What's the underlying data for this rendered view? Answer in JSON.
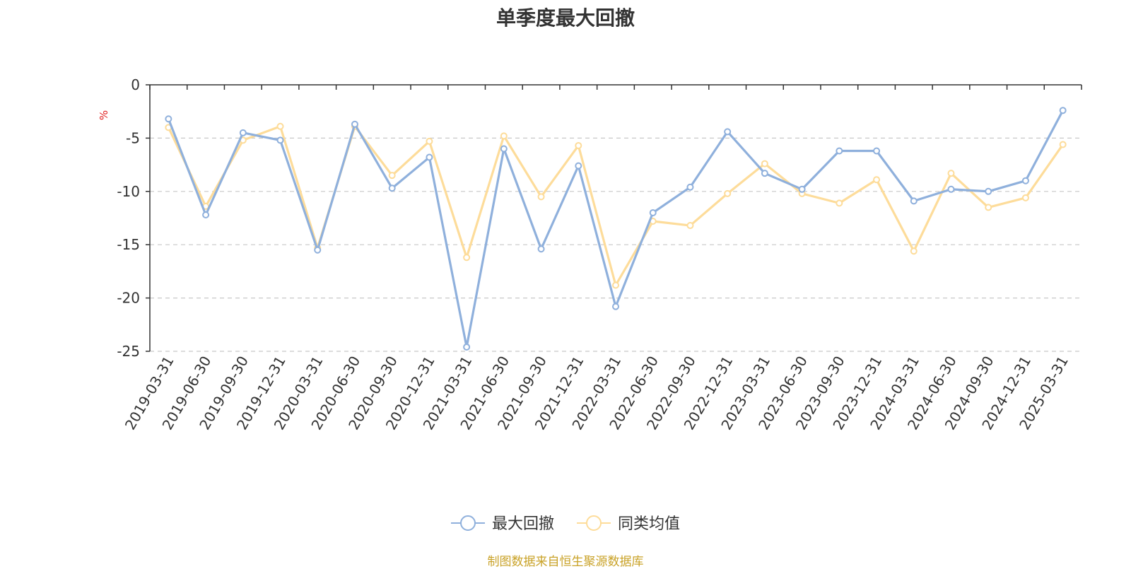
{
  "chart_data": {
    "type": "line",
    "title": "单季度最大回撤",
    "ylabel": "%",
    "ylim": [
      -25,
      0
    ],
    "yticks": [
      0,
      -5,
      -10,
      -15,
      -20,
      -25
    ],
    "grid": true,
    "legend_position": "bottom-center",
    "categories": [
      "2019-03-31",
      "2019-06-30",
      "2019-09-30",
      "2019-12-31",
      "2020-03-31",
      "2020-06-30",
      "2020-09-30",
      "2020-12-31",
      "2021-03-31",
      "2021-06-30",
      "2021-09-30",
      "2021-12-31",
      "2022-03-31",
      "2022-06-30",
      "2022-09-30",
      "2022-12-31",
      "2023-03-31",
      "2023-06-30",
      "2023-09-30",
      "2023-12-31",
      "2024-03-31",
      "2024-06-30",
      "2024-09-30",
      "2024-12-31",
      "2025-03-31"
    ],
    "series": [
      {
        "name": "最大回撤",
        "color": "#8fb0dc",
        "values": [
          -3.2,
          -12.2,
          -4.5,
          -5.2,
          -15.5,
          -3.7,
          -9.7,
          -6.8,
          -24.6,
          -6.0,
          -15.4,
          -7.6,
          -20.8,
          -12.0,
          -9.6,
          -4.4,
          -8.3,
          -9.8,
          -6.2,
          -6.2,
          -10.9,
          -9.8,
          -10.0,
          -9.0,
          -2.4
        ]
      },
      {
        "name": "同类均值",
        "color": "#fddc9a",
        "values": [
          -4.0,
          -11.4,
          -5.2,
          -3.9,
          -15.3,
          -3.9,
          -8.5,
          -5.3,
          -16.2,
          -4.8,
          -10.5,
          -5.7,
          -18.8,
          -12.8,
          -13.2,
          -10.2,
          -7.4,
          -10.2,
          -11.1,
          -8.9,
          -15.6,
          -8.3,
          -11.5,
          -10.6,
          -5.6
        ]
      }
    ]
  },
  "source": "制图数据来自恒生聚源数据库"
}
